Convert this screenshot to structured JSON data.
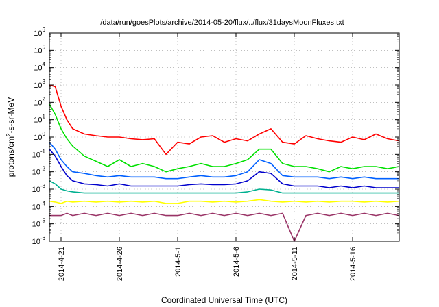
{
  "chart_data": {
    "type": "line",
    "title": "/data/run/goesPlots/archive/2014-05-20/flux/../flux/31daysMoonFluxes.txt",
    "xlabel": "Coordinated Universal Time (UTC)",
    "ylabel": "protons/cm²-s-sr-MeV",
    "y_scale": "log",
    "ylim": [
      1e-06,
      1000000.0
    ],
    "y_ticks": [
      {
        "exp": "-6",
        "value": 1e-06
      },
      {
        "exp": "-5",
        "value": 1e-05
      },
      {
        "exp": "-4",
        "value": 0.0001
      },
      {
        "exp": "-3",
        "value": 0.001
      },
      {
        "exp": "-2",
        "value": 0.01
      },
      {
        "exp": "-1",
        "value": 0.1
      },
      {
        "exp": "0",
        "value": 1
      },
      {
        "exp": "1",
        "value": 10
      },
      {
        "exp": "2",
        "value": 100
      },
      {
        "exp": "3",
        "value": 1000
      },
      {
        "exp": "4",
        "value": 10000
      },
      {
        "exp": "5",
        "value": 100000
      },
      {
        "exp": "6",
        "value": 1000000
      }
    ],
    "xlim": [
      "2014-04-20",
      "2014-05-20"
    ],
    "x_ticks": [
      "2014-4-21",
      "2014-4-26",
      "2014-5-1",
      "2014-5-6",
      "2014-5-11",
      "2014-5-16"
    ],
    "x_tick_dates": [
      "2014-04-21",
      "2014-04-26",
      "2014-05-01",
      "2014-05-06",
      "2014-05-11",
      "2014-05-16"
    ],
    "grid": true,
    "legend": "none",
    "series": [
      {
        "color": "#ff0000",
        "x": [
          "2014-04-20",
          "2014-04-20T12:00",
          "2014-04-21",
          "2014-04-21T12:00",
          "2014-04-22",
          "2014-04-23",
          "2014-04-24",
          "2014-04-25",
          "2014-04-26",
          "2014-04-27",
          "2014-04-28",
          "2014-04-29",
          "2014-04-30",
          "2014-05-01",
          "2014-05-02",
          "2014-05-03",
          "2014-05-04",
          "2014-05-05",
          "2014-05-06",
          "2014-05-07",
          "2014-05-08",
          "2014-05-09",
          "2014-05-10",
          "2014-05-11",
          "2014-05-12",
          "2014-05-13",
          "2014-05-14",
          "2014-05-15",
          "2014-05-16",
          "2014-05-17",
          "2014-05-18",
          "2014-05-19",
          "2014-05-20"
        ],
        "y": [
          1000,
          800,
          60,
          10,
          3,
          1.5,
          1.2,
          1,
          1,
          0.8,
          0.7,
          0.8,
          0.1,
          0.5,
          0.4,
          1,
          1.2,
          0.5,
          0.8,
          0.6,
          1.5,
          3,
          0.5,
          0.4,
          1.2,
          0.8,
          0.6,
          0.5,
          1,
          0.7,
          1.5,
          0.8,
          0.6
        ]
      },
      {
        "color": "#00e000",
        "x": [
          "2014-04-20",
          "2014-04-20T12:00",
          "2014-04-21",
          "2014-04-21T12:00",
          "2014-04-22",
          "2014-04-23",
          "2014-04-24",
          "2014-04-25",
          "2014-04-26",
          "2014-04-27",
          "2014-04-28",
          "2014-04-29",
          "2014-04-30",
          "2014-05-01",
          "2014-05-02",
          "2014-05-03",
          "2014-05-04",
          "2014-05-05",
          "2014-05-06",
          "2014-05-07",
          "2014-05-08",
          "2014-05-09",
          "2014-05-10",
          "2014-05-11",
          "2014-05-12",
          "2014-05-13",
          "2014-05-14",
          "2014-05-15",
          "2014-05-16",
          "2014-05-17",
          "2014-05-18",
          "2014-05-19",
          "2014-05-20"
        ],
        "y": [
          80,
          20,
          3,
          0.8,
          0.3,
          0.08,
          0.04,
          0.02,
          0.05,
          0.02,
          0.03,
          0.02,
          0.01,
          0.015,
          0.02,
          0.03,
          0.02,
          0.02,
          0.03,
          0.05,
          0.2,
          0.2,
          0.03,
          0.02,
          0.02,
          0.015,
          0.01,
          0.02,
          0.015,
          0.02,
          0.02,
          0.015,
          0.02
        ]
      },
      {
        "color": "#0060ff",
        "x": [
          "2014-04-20",
          "2014-04-20T12:00",
          "2014-04-21",
          "2014-04-21T12:00",
          "2014-04-22",
          "2014-04-23",
          "2014-04-24",
          "2014-04-25",
          "2014-04-26",
          "2014-04-27",
          "2014-04-28",
          "2014-04-29",
          "2014-04-30",
          "2014-05-01",
          "2014-05-02",
          "2014-05-03",
          "2014-05-04",
          "2014-05-05",
          "2014-05-06",
          "2014-05-07",
          "2014-05-08",
          "2014-05-09",
          "2014-05-10",
          "2014-05-11",
          "2014-05-12",
          "2014-05-13",
          "2014-05-14",
          "2014-05-15",
          "2014-05-16",
          "2014-05-17",
          "2014-05-18",
          "2014-05-19",
          "2014-05-20"
        ],
        "y": [
          0.5,
          0.2,
          0.05,
          0.02,
          0.01,
          0.008,
          0.006,
          0.005,
          0.006,
          0.005,
          0.005,
          0.005,
          0.004,
          0.004,
          0.005,
          0.006,
          0.005,
          0.005,
          0.006,
          0.01,
          0.05,
          0.03,
          0.006,
          0.005,
          0.005,
          0.005,
          0.004,
          0.005,
          0.004,
          0.005,
          0.004,
          0.004,
          0.004
        ]
      },
      {
        "color": "#0000cc",
        "x": [
          "2014-04-20",
          "2014-04-20T12:00",
          "2014-04-21",
          "2014-04-21T12:00",
          "2014-04-22",
          "2014-04-23",
          "2014-04-24",
          "2014-04-25",
          "2014-04-26",
          "2014-04-27",
          "2014-04-28",
          "2014-04-29",
          "2014-04-30",
          "2014-05-01",
          "2014-05-02",
          "2014-05-03",
          "2014-05-04",
          "2014-05-05",
          "2014-05-06",
          "2014-05-07",
          "2014-05-08",
          "2014-05-09",
          "2014-05-10",
          "2014-05-11",
          "2014-05-12",
          "2014-05-13",
          "2014-05-14",
          "2014-05-15",
          "2014-05-16",
          "2014-05-17",
          "2014-05-18",
          "2014-05-19",
          "2014-05-20"
        ],
        "y": [
          0.2,
          0.08,
          0.02,
          0.006,
          0.003,
          0.002,
          0.0018,
          0.0015,
          0.002,
          0.0015,
          0.0015,
          0.0015,
          0.0015,
          0.0015,
          0.0018,
          0.002,
          0.0018,
          0.0018,
          0.002,
          0.003,
          0.01,
          0.008,
          0.002,
          0.0015,
          0.0015,
          0.0015,
          0.0012,
          0.0015,
          0.0012,
          0.0015,
          0.0012,
          0.0012,
          0.0012
        ]
      },
      {
        "color": "#00b090",
        "x": [
          "2014-04-20",
          "2014-04-20T12:00",
          "2014-04-21",
          "2014-04-21T12:00",
          "2014-04-22",
          "2014-04-23",
          "2014-04-24",
          "2014-04-25",
          "2014-04-26",
          "2014-04-27",
          "2014-04-28",
          "2014-04-29",
          "2014-04-30",
          "2014-05-01",
          "2014-05-02",
          "2014-05-03",
          "2014-05-04",
          "2014-05-05",
          "2014-05-06",
          "2014-05-07",
          "2014-05-08",
          "2014-05-09",
          "2014-05-10",
          "2014-05-11",
          "2014-05-12",
          "2014-05-13",
          "2014-05-14",
          "2014-05-15",
          "2014-05-16",
          "2014-05-17",
          "2014-05-18",
          "2014-05-19",
          "2014-05-20"
        ],
        "y": [
          0.003,
          0.002,
          0.001,
          0.0008,
          0.0007,
          0.0006,
          0.0006,
          0.0006,
          0.0006,
          0.0006,
          0.0006,
          0.0006,
          0.0006,
          0.0006,
          0.0006,
          0.0006,
          0.0006,
          0.0006,
          0.0006,
          0.0007,
          0.001,
          0.0009,
          0.0006,
          0.0006,
          0.0006,
          0.0006,
          0.0006,
          0.0006,
          0.0006,
          0.0006,
          0.0006,
          0.0006,
          0.0006
        ]
      },
      {
        "color": "#ffff00",
        "x": [
          "2014-04-20",
          "2014-04-20T12:00",
          "2014-04-21",
          "2014-04-21T12:00",
          "2014-04-22",
          "2014-04-23",
          "2014-04-24",
          "2014-04-25",
          "2014-04-26",
          "2014-04-27",
          "2014-04-28",
          "2014-04-29",
          "2014-04-30",
          "2014-05-01",
          "2014-05-02",
          "2014-05-03",
          "2014-05-04",
          "2014-05-05",
          "2014-05-06",
          "2014-05-07",
          "2014-05-08",
          "2014-05-09",
          "2014-05-10",
          "2014-05-11",
          "2014-05-12",
          "2014-05-13",
          "2014-05-14",
          "2014-05-15",
          "2014-05-16",
          "2014-05-17",
          "2014-05-18",
          "2014-05-19",
          "2014-05-20"
        ],
        "y": [
          0.0002,
          0.00018,
          0.00015,
          0.0002,
          0.00018,
          0.0002,
          0.00018,
          0.0002,
          0.00018,
          0.0002,
          0.00018,
          0.0002,
          0.00015,
          0.00015,
          0.0002,
          0.0002,
          0.00018,
          0.0002,
          0.00018,
          0.0002,
          0.00025,
          0.0002,
          0.00018,
          0.0002,
          0.00018,
          0.0002,
          0.00018,
          0.0002,
          0.0002,
          0.00018,
          0.0002,
          0.00018,
          0.0002
        ]
      },
      {
        "color": "#993366",
        "x": [
          "2014-04-20",
          "2014-04-20T12:00",
          "2014-04-21",
          "2014-04-21T12:00",
          "2014-04-22",
          "2014-04-23",
          "2014-04-24",
          "2014-04-25",
          "2014-04-26",
          "2014-04-27",
          "2014-04-28",
          "2014-04-29",
          "2014-04-30",
          "2014-05-01",
          "2014-05-02",
          "2014-05-03",
          "2014-05-04",
          "2014-05-05",
          "2014-05-06",
          "2014-05-07",
          "2014-05-08",
          "2014-05-09",
          "2014-05-10",
          "2014-05-11",
          "2014-05-12",
          "2014-05-13",
          "2014-05-14",
          "2014-05-15",
          "2014-05-16",
          "2014-05-17",
          "2014-05-18",
          "2014-05-19",
          "2014-05-20"
        ],
        "y": [
          3e-05,
          3e-05,
          3e-05,
          4e-05,
          3e-05,
          4e-05,
          3e-05,
          4e-05,
          3e-05,
          4e-05,
          3e-05,
          4e-05,
          3e-05,
          3e-05,
          4e-05,
          3e-05,
          4e-05,
          3e-05,
          4e-05,
          3e-05,
          4e-05,
          3e-05,
          4e-05,
          1e-06,
          3e-05,
          4e-05,
          3e-05,
          4e-05,
          3e-05,
          4e-05,
          3e-05,
          4e-05,
          3e-05
        ]
      }
    ]
  }
}
